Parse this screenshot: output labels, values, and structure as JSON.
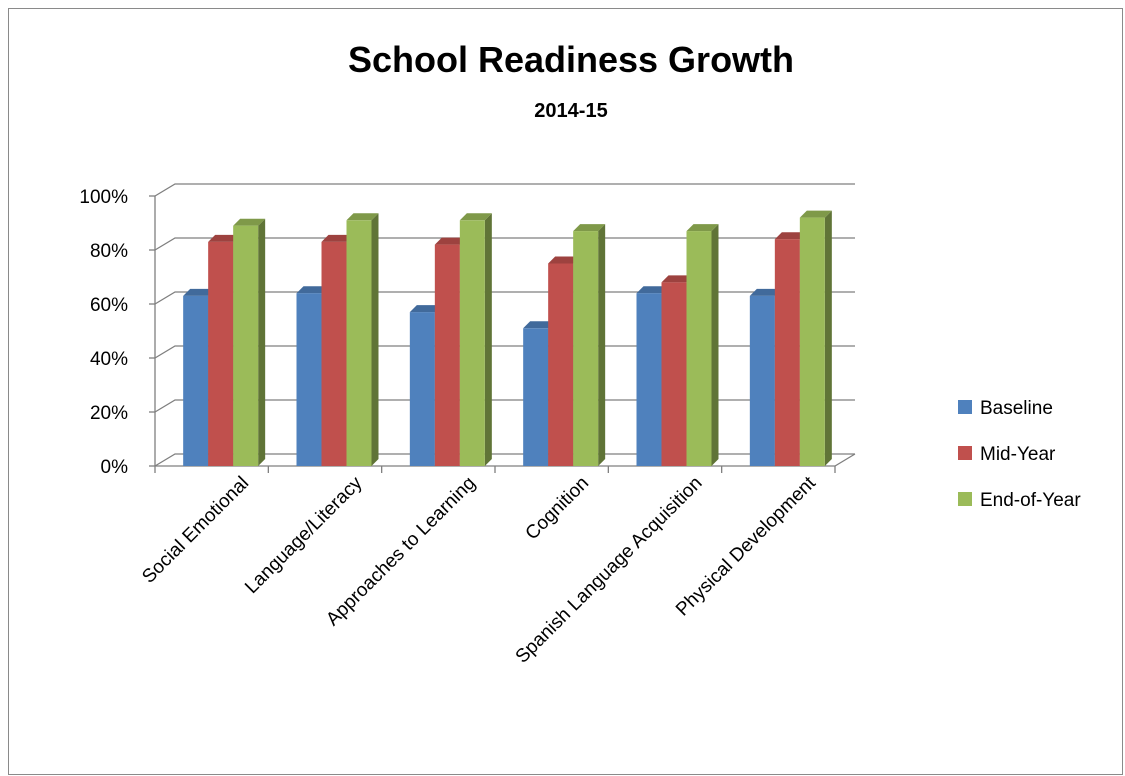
{
  "chart_data": {
    "type": "bar",
    "title": "School Readiness Growth",
    "subtitle": "2014-15",
    "categories": [
      "Social Emotional",
      "Language/Literacy",
      "Approaches to Learning",
      "Cognition",
      "Spanish Language Acquisition",
      "Physical Development"
    ],
    "series": [
      {
        "name": "Baseline",
        "color": "#4f81bd",
        "values": [
          63,
          64,
          57,
          51,
          64,
          63
        ]
      },
      {
        "name": "Mid-Year",
        "color": "#c0504d",
        "values": [
          83,
          83,
          82,
          75,
          68,
          84
        ]
      },
      {
        "name": "End-of-Year",
        "color": "#9bbb59",
        "values": [
          89,
          91,
          91,
          87,
          87,
          92
        ]
      }
    ],
    "yticks": [
      "0%",
      "20%",
      "40%",
      "60%",
      "80%",
      "100%"
    ],
    "ylim": [
      0,
      100
    ],
    "grid": true,
    "legend_position": "right"
  }
}
